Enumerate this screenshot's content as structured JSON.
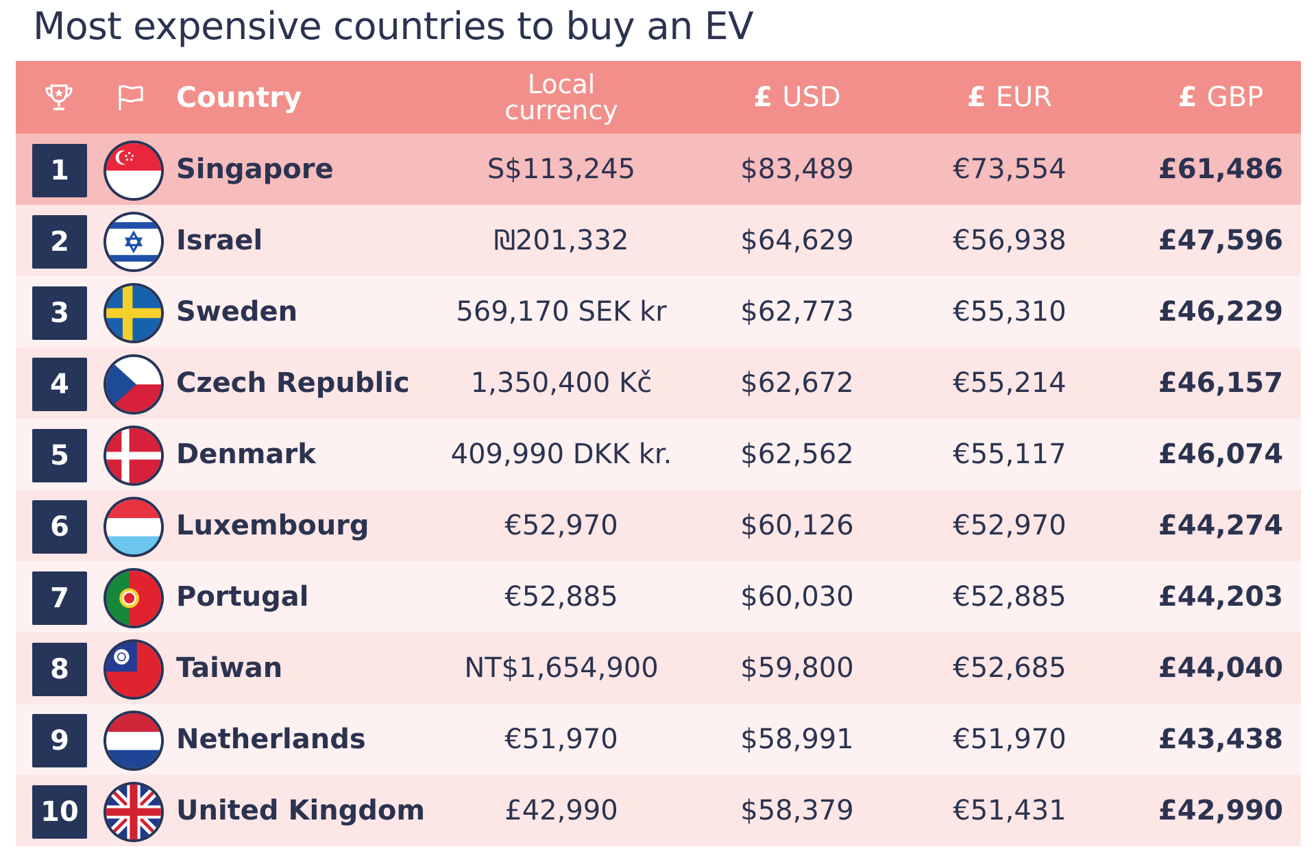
{
  "page": {
    "title": "Most expensive countries to buy an EV"
  },
  "colors": {
    "header_bg": "#f28f8b",
    "first_row_bg": "#f7bcbc",
    "odd_row_bg": "#fde6e6",
    "even_row_bg": "#fef1f1",
    "rank_bg": "#263559",
    "text": "#2b3350"
  },
  "chart_data": {
    "type": "table",
    "title": "Most expensive countries to buy an EV",
    "header": {
      "trophy_icon": "trophy-icon",
      "flag_icon": "flag-icon",
      "country": "Country",
      "local_line1": "Local",
      "local_line2": "currency",
      "usd_symbol": "£",
      "usd": "USD",
      "eur_symbol": "£",
      "eur": "EUR",
      "gbp_symbol": "£",
      "gbp": "GBP"
    },
    "rows": [
      {
        "rank": "1",
        "country": "Singapore",
        "flag": "singapore-flag",
        "local": "S$113,245",
        "usd": "$83,489",
        "eur": "€73,554",
        "gbp": "£61,486"
      },
      {
        "rank": "2",
        "country": "Israel",
        "flag": "israel-flag",
        "local": "₪201,332",
        "usd": "$64,629",
        "eur": "€56,938",
        "gbp": "£47,596"
      },
      {
        "rank": "3",
        "country": "Sweden",
        "flag": "sweden-flag",
        "local": "569,170 SEK kr",
        "usd": "$62,773",
        "eur": "€55,310",
        "gbp": "£46,229"
      },
      {
        "rank": "4",
        "country": "Czech Republic",
        "flag": "czech-flag",
        "local": "1,350,400 Kč",
        "usd": "$62,672",
        "eur": "€55,214",
        "gbp": "£46,157"
      },
      {
        "rank": "5",
        "country": "Denmark",
        "flag": "denmark-flag",
        "local": "409,990 DKK kr.",
        "usd": "$62,562",
        "eur": "€55,117",
        "gbp": "£46,074"
      },
      {
        "rank": "6",
        "country": "Luxembourg",
        "flag": "luxembourg-flag",
        "local": "€52,970",
        "usd": "$60,126",
        "eur": "€52,970",
        "gbp": "£44,274"
      },
      {
        "rank": "7",
        "country": "Portugal",
        "flag": "portugal-flag",
        "local": "€52,885",
        "usd": "$60,030",
        "eur": "€52,885",
        "gbp": "£44,203"
      },
      {
        "rank": "8",
        "country": "Taiwan",
        "flag": "taiwan-flag",
        "local": "NT$1,654,900",
        "usd": "$59,800",
        "eur": "€52,685",
        "gbp": "£44,040"
      },
      {
        "rank": "9",
        "country": "Netherlands",
        "flag": "netherlands-flag",
        "local": "€51,970",
        "usd": "$58,991",
        "eur": "€51,970",
        "gbp": "£43,438"
      },
      {
        "rank": "10",
        "country": "United Kingdom",
        "flag": "uk-flag",
        "local": "£42,990",
        "usd": "$58,379",
        "eur": "€51,431",
        "gbp": "£42,990"
      }
    ]
  }
}
